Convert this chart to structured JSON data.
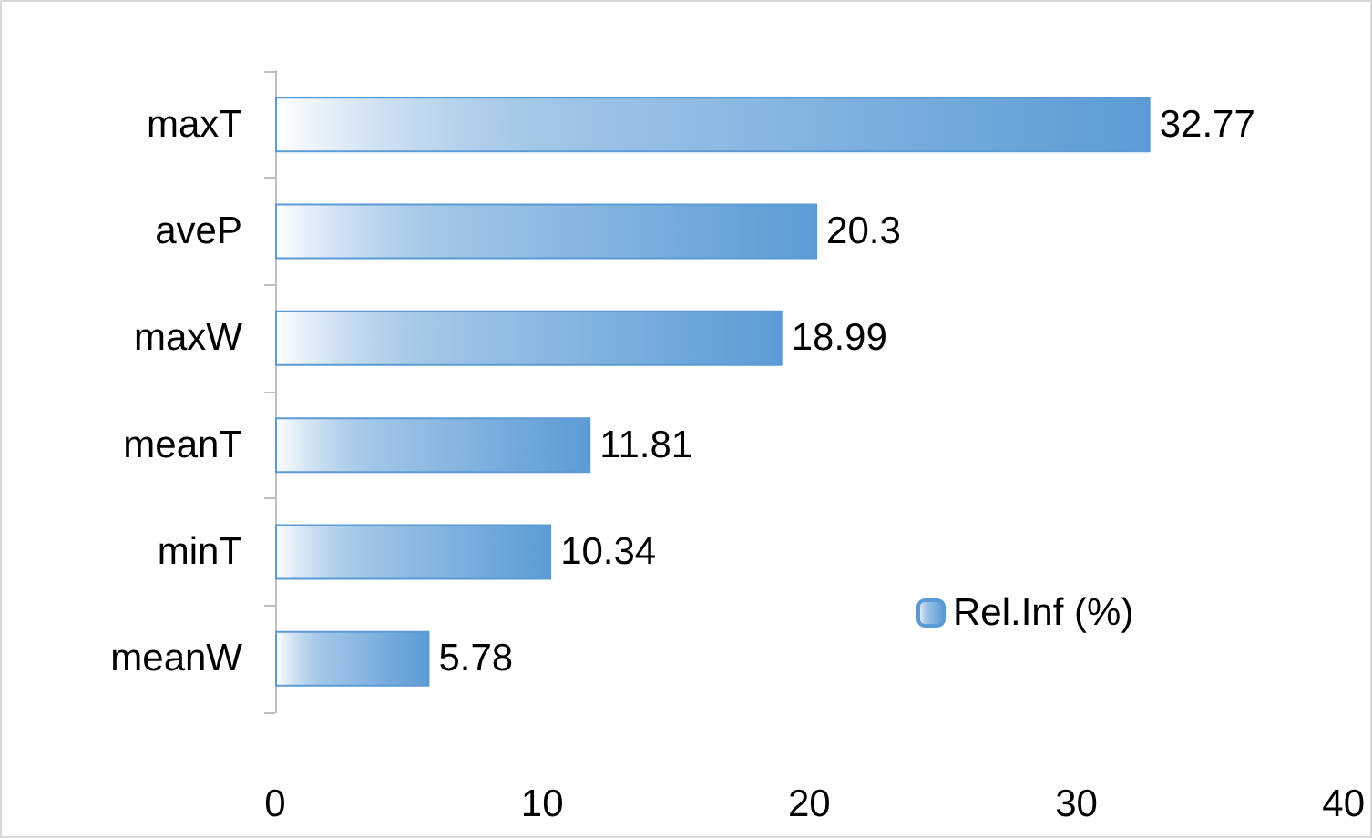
{
  "chart_data": {
    "type": "bar",
    "orientation": "horizontal",
    "categories": [
      "maxT",
      "aveP",
      "maxW",
      "meanT",
      "minT",
      "meanW"
    ],
    "series": [
      {
        "name": "Rel.Inf (%)",
        "color": "#5b9bd5",
        "values": [
          32.77,
          20.3,
          18.99,
          11.81,
          10.34,
          5.78
        ]
      }
    ],
    "xlim": [
      0,
      40
    ],
    "xticks": [
      0,
      10,
      20,
      30,
      40
    ],
    "grid": false,
    "legend": "right",
    "data_labels": true
  }
}
